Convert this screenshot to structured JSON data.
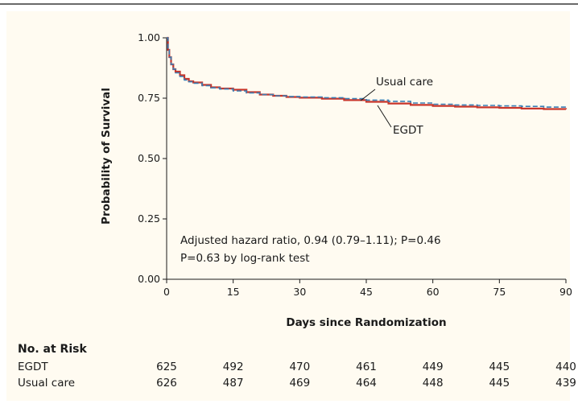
{
  "chart_data": {
    "type": "line",
    "xlabel": "Days since Randomization",
    "ylabel": "Probability of Survival",
    "xlim": [
      0,
      90
    ],
    "ylim": [
      0,
      1
    ],
    "x_ticks": [
      0,
      15,
      30,
      45,
      60,
      75,
      90
    ],
    "y_ticks": [
      "0.00",
      "0.25",
      "0.50",
      "0.75",
      "1.00"
    ],
    "y_tick_values": [
      0,
      0.25,
      0.5,
      0.75,
      1.0
    ],
    "grid": false,
    "series": [
      {
        "name": "EGDT",
        "color": "#c8352a",
        "style": "solid",
        "x": [
          0,
          0.3,
          0.6,
          1,
          1.5,
          2,
          3,
          4,
          5,
          6,
          8,
          10,
          12,
          15,
          18,
          21,
          24,
          27,
          30,
          35,
          40,
          45,
          50,
          55,
          60,
          65,
          70,
          75,
          80,
          85,
          90
        ],
        "y": [
          1.0,
          0.95,
          0.92,
          0.89,
          0.87,
          0.86,
          0.845,
          0.83,
          0.82,
          0.815,
          0.805,
          0.795,
          0.79,
          0.785,
          0.775,
          0.765,
          0.76,
          0.755,
          0.752,
          0.748,
          0.742,
          0.735,
          0.728,
          0.722,
          0.718,
          0.715,
          0.712,
          0.71,
          0.707,
          0.705,
          0.704
        ]
      },
      {
        "name": "Usual care",
        "color": "#3a7fb5",
        "style": "dashed",
        "x": [
          0,
          0.3,
          0.6,
          1,
          1.5,
          2,
          3,
          4,
          5,
          6,
          8,
          10,
          12,
          15,
          18,
          21,
          24,
          27,
          30,
          35,
          40,
          45,
          50,
          55,
          60,
          65,
          70,
          75,
          80,
          85,
          90
        ],
        "y": [
          1.0,
          0.95,
          0.92,
          0.89,
          0.87,
          0.855,
          0.84,
          0.825,
          0.818,
          0.812,
          0.802,
          0.793,
          0.788,
          0.78,
          0.772,
          0.765,
          0.76,
          0.757,
          0.755,
          0.752,
          0.748,
          0.742,
          0.737,
          0.73,
          0.725,
          0.722,
          0.72,
          0.718,
          0.716,
          0.713,
          0.711
        ]
      }
    ],
    "series_labels": [
      "Usual care",
      "EGDT"
    ],
    "annotations": [
      "Adjusted hazard ratio, 0.94 (0.79–1.11); P=0.46",
      "P=0.63 by log-rank test"
    ],
    "risk_table": {
      "title": "No. at Risk",
      "rows": [
        {
          "label": "EGDT",
          "values": [
            "625",
            "492",
            "470",
            "461",
            "449",
            "445",
            "440"
          ]
        },
        {
          "label": "Usual care",
          "values": [
            "626",
            "487",
            "469",
            "464",
            "448",
            "445",
            "439"
          ]
        }
      ]
    }
  }
}
